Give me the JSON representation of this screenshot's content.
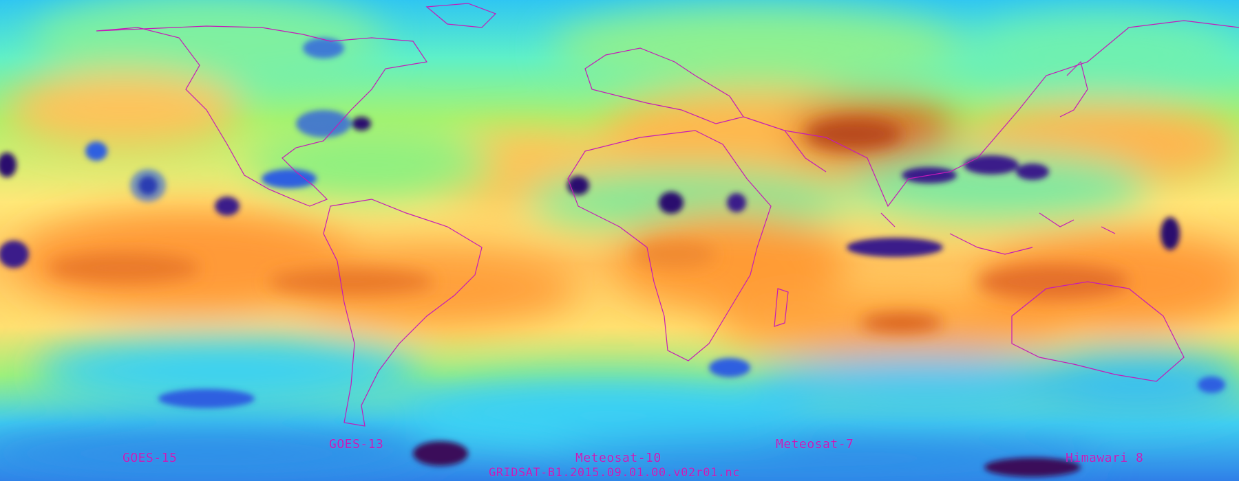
{
  "map": {
    "projection": "equirectangular",
    "colormap": [
      "#2a0a6e",
      "#2f5fe0",
      "#2fc6f2",
      "#5ef0c8",
      "#b8f56a",
      "#fff27a",
      "#ffbf50",
      "#ff8a2a",
      "#d9561a"
    ],
    "coastline_color": "#c51ab8"
  },
  "labels": {
    "goes15": "GOES-15",
    "goes13": "GOES-13",
    "meteosat10": "Meteosat-10",
    "meteosat7": "Meteosat-7",
    "himawari8": "Himawari 8",
    "filename": "GRIDSAT-B1.2015.09.01.00.v02r01.nc"
  }
}
